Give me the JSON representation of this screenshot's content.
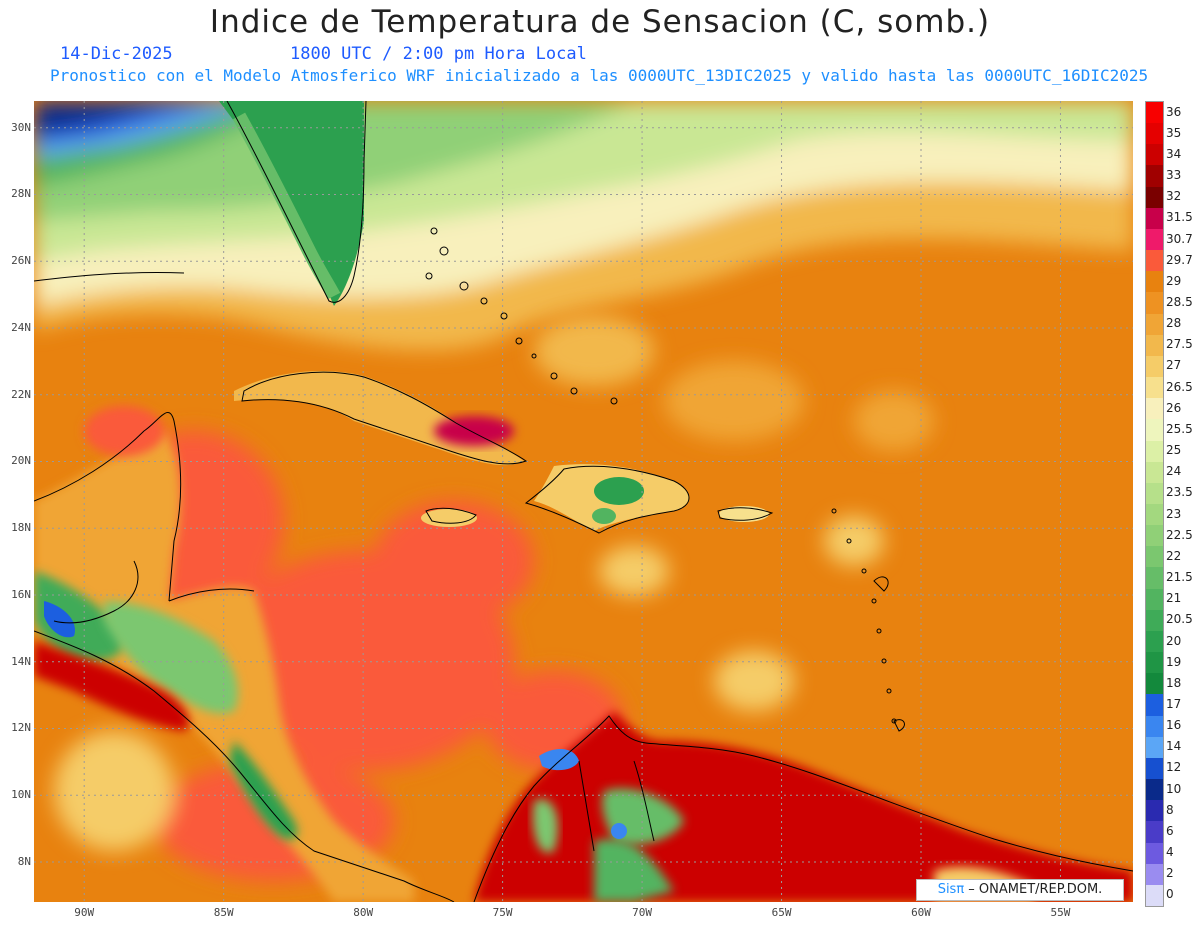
{
  "title": "Indice de Temperatura de Sensacion (C, somb.)",
  "date": "14-Dic-2025",
  "time": "1800 UTC / 2:00 pm Hora Local",
  "subtitle": "Pronostico con el Modelo Atmosferico WRF inicializado a las 0000UTC_13DIC2025 y valido hasta las  0000UTC_16DIC2025",
  "map": {
    "lat_range": [
      6.8,
      30.8
    ],
    "lon_range": [
      -91.8,
      -52.4
    ],
    "lat_labels": [
      "30N",
      "28N",
      "26N",
      "24N",
      "22N",
      "20N",
      "18N",
      "16N",
      "14N",
      "12N",
      "10N",
      "8N"
    ],
    "lon_labels": [
      "90W",
      "85W",
      "80W",
      "75W",
      "70W",
      "65W",
      "60W",
      "55W"
    ],
    "colors": {
      "ocean_base": "#e8820f",
      "ocean_warm": "#fa5a3a",
      "coast_line": "#000000",
      "grid_line": "#9a9a9a"
    }
  },
  "colorbar": {
    "levels": [
      "36",
      "35",
      "34",
      "33",
      "32",
      "31.5",
      "30.7",
      "29.7",
      "29",
      "28.5",
      "28",
      "27.5",
      "27",
      "26.5",
      "26",
      "25.5",
      "25",
      "24",
      "23.5",
      "23",
      "22.5",
      "22",
      "21.5",
      "21",
      "20.5",
      "20",
      "19",
      "18",
      "17",
      "16",
      "14",
      "12",
      "10",
      "8",
      "6",
      "4",
      "2",
      "0"
    ],
    "colors": [
      "#f80000",
      "#e50000",
      "#cc0000",
      "#a00000",
      "#7a0000",
      "#c8004a",
      "#ef1a6a",
      "#fa5a3a",
      "#e8820f",
      "#ee9222",
      "#f0a536",
      "#f2b84c",
      "#f5cc68",
      "#f7e08d",
      "#f8f0bc",
      "#eef5bd",
      "#dcf0a6",
      "#c9e794",
      "#b6e08a",
      "#a3d87f",
      "#90d077",
      "#7bc76f",
      "#66bd68",
      "#52b460",
      "#3fab58",
      "#2ca04f",
      "#1f9545",
      "#13893c",
      "#1c5fe0",
      "#3a86f0",
      "#5ba6f6",
      "#1650d0",
      "#0a2a8a",
      "#2a2ab0",
      "#4a3cc8",
      "#6d5ae0",
      "#9a8cf0",
      "#dcdcf8"
    ]
  },
  "credit": {
    "brand": "Sisπ",
    "org": " – ONAMET/REP.DOM."
  }
}
